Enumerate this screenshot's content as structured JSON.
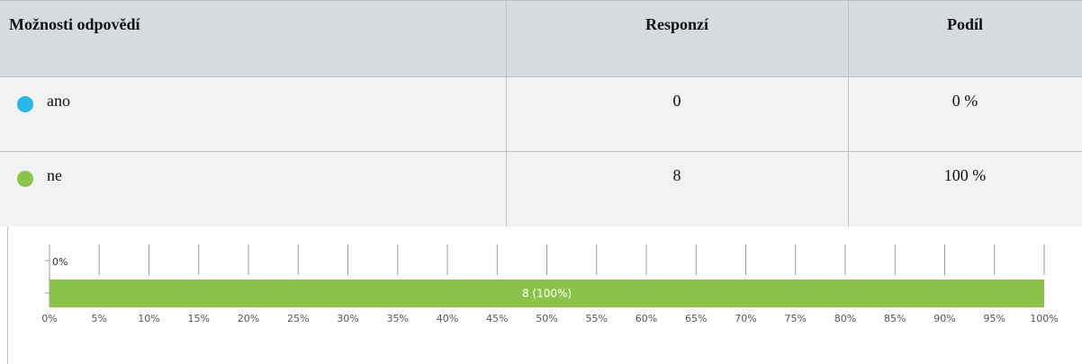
{
  "table": {
    "header": [
      "Možnosti odpovědí",
      "Responzí",
      "Podíl"
    ],
    "rows": [
      [
        "ano",
        0,
        "0 %"
      ],
      [
        "ne",
        8,
        "100 %"
      ]
    ]
  },
  "chart_data": {
    "type": "bar",
    "orientation": "horizontal",
    "stacked": true,
    "series": [
      {
        "name": "ano",
        "color": "#29b5e8",
        "values": [
          0
        ],
        "value_labels": [
          "0%"
        ]
      },
      {
        "name": "ne",
        "color": "#8bc34a",
        "values": [
          100
        ],
        "value_labels": [
          "8 (100%)"
        ]
      }
    ],
    "xlim": [
      0,
      100
    ],
    "xticks": [
      {
        "value": 0,
        "label": "0%"
      },
      {
        "value": 5,
        "label": "5%"
      },
      {
        "value": 10,
        "label": "10%"
      },
      {
        "value": 15,
        "label": "15%"
      },
      {
        "value": 20,
        "label": "20%"
      },
      {
        "value": 25,
        "label": "25%"
      },
      {
        "value": 30,
        "label": "30%"
      },
      {
        "value": 35,
        "label": "35%"
      },
      {
        "value": 40,
        "label": "40%"
      },
      {
        "value": 45,
        "label": "45%"
      },
      {
        "value": 50,
        "label": "50%"
      },
      {
        "value": 55,
        "label": "55%"
      },
      {
        "value": 60,
        "label": "60%"
      },
      {
        "value": 65,
        "label": "65%"
      },
      {
        "value": 70,
        "label": "70%"
      },
      {
        "value": 75,
        "label": "75%"
      },
      {
        "value": 80,
        "label": "80%"
      },
      {
        "value": 85,
        "label": "85%"
      },
      {
        "value": 90,
        "label": "90%"
      },
      {
        "value": 95,
        "label": "95%"
      },
      {
        "value": 100,
        "label": "100%"
      }
    ]
  }
}
